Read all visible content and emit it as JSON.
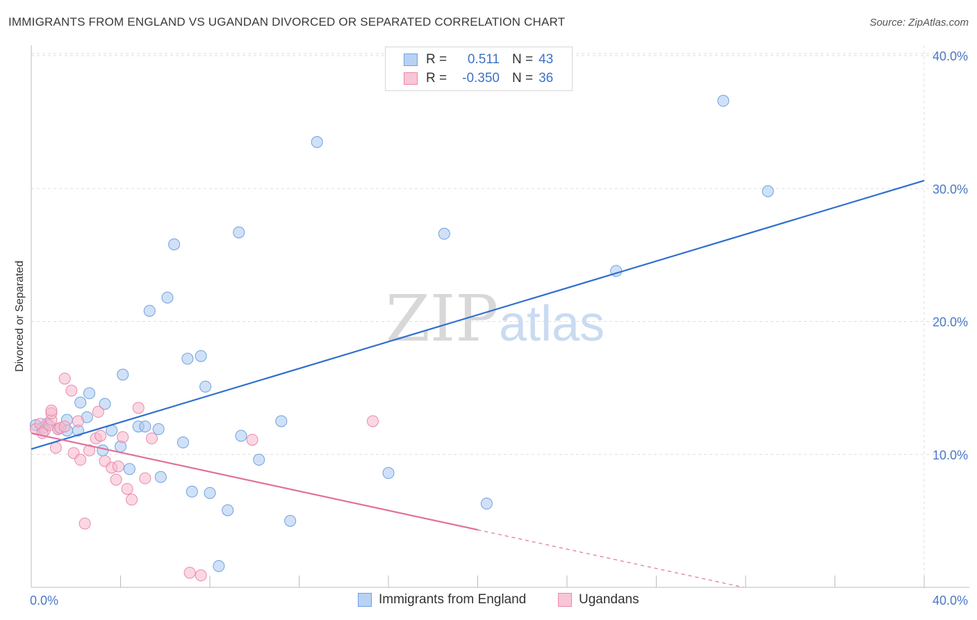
{
  "title": "IMMIGRANTS FROM ENGLAND VS UGANDAN DIVORCED OR SEPARATED CORRELATION CHART",
  "source": "Source: ZipAtlas.com",
  "watermark": {
    "zip": "ZIP",
    "atlas": "atlas"
  },
  "colors": {
    "blue_fill": "#aac8f0",
    "blue_stroke": "#6f9fe0",
    "blue_line": "#2f6fcf",
    "pink_fill": "#f5b8cc",
    "pink_stroke": "#e98aa8",
    "pink_line": "#e0709a",
    "tick_text": "#4a78c8",
    "grid": "#dddddd"
  },
  "legend": {
    "rows": [
      {
        "r_label": "R =",
        "r_value": "0.511",
        "n_label": "N =",
        "n_value": "43"
      },
      {
        "r_label": "R =",
        "r_value": "-0.350",
        "n_label": "N =",
        "n_value": "36"
      }
    ]
  },
  "bottom_legend": {
    "series1": "Immigrants from England",
    "series2": "Ugandans"
  },
  "chart_data": {
    "type": "scatter",
    "title": "IMMIGRANTS FROM ENGLAND VS UGANDAN DIVORCED OR SEPARATED CORRELATION CHART",
    "xlabel": "",
    "ylabel": "Divorced or Separated",
    "xlim": [
      0,
      40
    ],
    "ylim": [
      0,
      40
    ],
    "x_tick_labels": [
      "0.0%",
      "40.0%"
    ],
    "y_ticks": [
      10,
      20,
      30,
      40
    ],
    "y_tick_labels": [
      "10.0%",
      "20.0%",
      "30.0%",
      "40.0%"
    ],
    "grid": true,
    "series": [
      {
        "name": "Immigrants from England",
        "r": 0.511,
        "n": 43,
        "trend": {
          "x": [
            0,
            40
          ],
          "y": [
            10.4,
            30.6
          ],
          "dashed_after": null
        },
        "points": [
          [
            0.2,
            12.2
          ],
          [
            0.5,
            12.0
          ],
          [
            0.7,
            12.3
          ],
          [
            1.2,
            11.9
          ],
          [
            1.6,
            11.8
          ],
          [
            1.6,
            12.6
          ],
          [
            2.1,
            11.8
          ],
          [
            2.2,
            13.9
          ],
          [
            2.5,
            12.8
          ],
          [
            2.6,
            14.6
          ],
          [
            3.2,
            10.3
          ],
          [
            3.3,
            13.8
          ],
          [
            3.6,
            11.8
          ],
          [
            4.0,
            10.6
          ],
          [
            4.1,
            16.0
          ],
          [
            4.4,
            8.9
          ],
          [
            4.8,
            12.1
          ],
          [
            5.1,
            12.1
          ],
          [
            5.3,
            20.8
          ],
          [
            5.7,
            11.9
          ],
          [
            5.8,
            8.3
          ],
          [
            6.1,
            21.8
          ],
          [
            6.4,
            25.8
          ],
          [
            6.8,
            10.9
          ],
          [
            7.0,
            17.2
          ],
          [
            7.2,
            7.2
          ],
          [
            7.6,
            17.4
          ],
          [
            7.8,
            15.1
          ],
          [
            8.0,
            7.1
          ],
          [
            8.4,
            1.6
          ],
          [
            8.8,
            5.8
          ],
          [
            9.3,
            26.7
          ],
          [
            9.4,
            11.4
          ],
          [
            10.2,
            9.6
          ],
          [
            11.2,
            12.5
          ],
          [
            11.6,
            5.0
          ],
          [
            12.8,
            33.5
          ],
          [
            16.0,
            8.6
          ],
          [
            18.5,
            26.6
          ],
          [
            20.4,
            6.3
          ],
          [
            26.2,
            23.8
          ],
          [
            31.0,
            36.6
          ],
          [
            33.0,
            29.8
          ]
        ]
      },
      {
        "name": "Ugandans",
        "r": -0.35,
        "n": 36,
        "trend": {
          "x": [
            0,
            31.9
          ],
          "y": [
            11.6,
            0.0
          ],
          "dashed_after": 20.0
        },
        "points": [
          [
            0.2,
            11.9
          ],
          [
            0.4,
            12.3
          ],
          [
            0.6,
            11.8
          ],
          [
            0.8,
            12.2
          ],
          [
            0.9,
            12.6
          ],
          [
            0.9,
            13.1
          ],
          [
            0.9,
            13.3
          ],
          [
            1.1,
            10.5
          ],
          [
            1.2,
            11.9
          ],
          [
            1.3,
            12.0
          ],
          [
            1.5,
            12.1
          ],
          [
            1.5,
            15.7
          ],
          [
            1.8,
            14.8
          ],
          [
            1.9,
            10.1
          ],
          [
            2.1,
            12.5
          ],
          [
            2.2,
            9.6
          ],
          [
            2.4,
            4.8
          ],
          [
            2.6,
            10.3
          ],
          [
            2.9,
            11.2
          ],
          [
            3.0,
            13.2
          ],
          [
            3.1,
            11.4
          ],
          [
            3.3,
            9.5
          ],
          [
            3.6,
            9.0
          ],
          [
            3.8,
            8.1
          ],
          [
            3.9,
            9.1
          ],
          [
            4.1,
            11.3
          ],
          [
            4.3,
            7.4
          ],
          [
            4.5,
            6.6
          ],
          [
            4.8,
            13.5
          ],
          [
            5.1,
            8.2
          ],
          [
            5.4,
            11.2
          ],
          [
            9.9,
            11.1
          ],
          [
            15.3,
            12.5
          ],
          [
            7.1,
            1.1
          ],
          [
            7.6,
            0.9
          ],
          [
            0.5,
            11.6
          ]
        ]
      }
    ]
  }
}
